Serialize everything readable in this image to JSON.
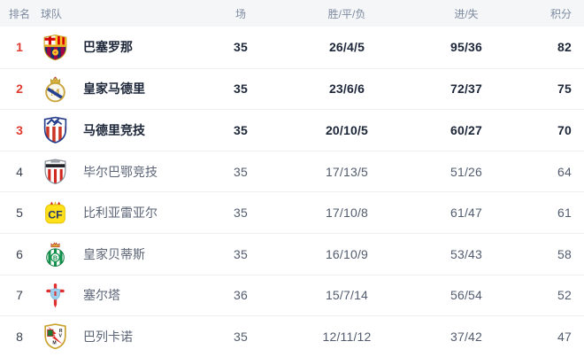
{
  "table": {
    "columns": [
      "排名",
      "球队",
      "场",
      "胜/平/负",
      "进/失",
      "积分"
    ],
    "accent_color": "#e13a30",
    "header_bg_color": "#f4f6f8",
    "rows": [
      {
        "rank": "1",
        "team": "巴塞罗那",
        "logo": "barcelona-crest-icon",
        "played": "35",
        "wdl": "26/4/5",
        "goals": "95/36",
        "points": "82",
        "highlight": true
      },
      {
        "rank": "2",
        "team": "皇家马德里",
        "logo": "real-madrid-crest-icon",
        "played": "35",
        "wdl": "23/6/6",
        "goals": "72/37",
        "points": "75",
        "highlight": true
      },
      {
        "rank": "3",
        "team": "马德里竞技",
        "logo": "atletico-madrid-crest-icon",
        "played": "35",
        "wdl": "20/10/5",
        "goals": "60/27",
        "points": "70",
        "highlight": true
      },
      {
        "rank": "4",
        "team": "毕尔巴鄂竞技",
        "logo": "athletic-bilbao-crest-icon",
        "played": "35",
        "wdl": "17/13/5",
        "goals": "51/26",
        "points": "64",
        "highlight": false
      },
      {
        "rank": "5",
        "team": "比利亚雷亚尔",
        "logo": "villarreal-crest-icon",
        "played": "35",
        "wdl": "17/10/8",
        "goals": "61/47",
        "points": "61",
        "highlight": false
      },
      {
        "rank": "6",
        "team": "皇家贝蒂斯",
        "logo": "real-betis-crest-icon",
        "played": "35",
        "wdl": "16/10/9",
        "goals": "53/43",
        "points": "58",
        "highlight": false
      },
      {
        "rank": "7",
        "team": "塞尔塔",
        "logo": "celta-vigo-crest-icon",
        "played": "36",
        "wdl": "15/7/14",
        "goals": "56/54",
        "points": "52",
        "highlight": false
      },
      {
        "rank": "8",
        "team": "巴列卡诺",
        "logo": "rayo-vallecano-crest-icon",
        "played": "35",
        "wdl": "12/11/12",
        "goals": "37/42",
        "points": "47",
        "highlight": false
      }
    ]
  }
}
